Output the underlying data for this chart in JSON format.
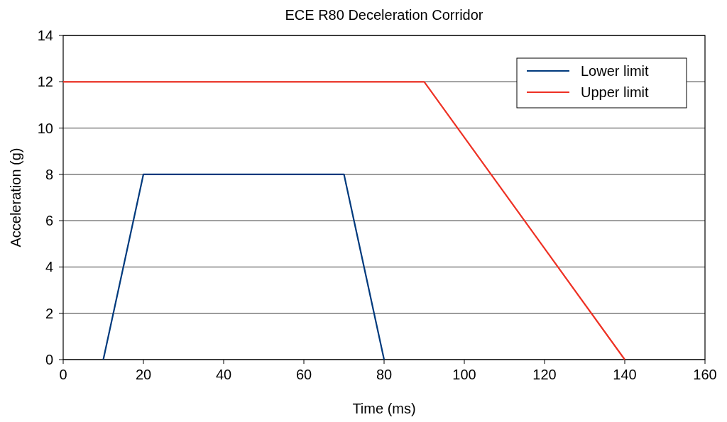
{
  "chart_data": {
    "type": "line",
    "title": "ECE R80 Deceleration Corridor",
    "xlabel": "Time (ms)",
    "ylabel": "Acceleration (g)",
    "xlim": [
      0,
      160
    ],
    "xticks": [
      0,
      20,
      40,
      60,
      80,
      100,
      120,
      140,
      160
    ],
    "ylim": [
      0,
      14
    ],
    "yticks": [
      0,
      2,
      4,
      6,
      8,
      10,
      12,
      14
    ],
    "grid": "y",
    "legend": "top right",
    "marker": "none",
    "line_style": "solid",
    "series": [
      {
        "name": "Lower limit",
        "color": "#003a7d",
        "x": [
          10,
          20,
          70,
          80
        ],
        "values": [
          0,
          8,
          8,
          0
        ]
      },
      {
        "name": "Upper limit",
        "color": "#ee3124",
        "x": [
          0,
          90,
          140
        ],
        "values": [
          12,
          12,
          0
        ]
      }
    ]
  }
}
